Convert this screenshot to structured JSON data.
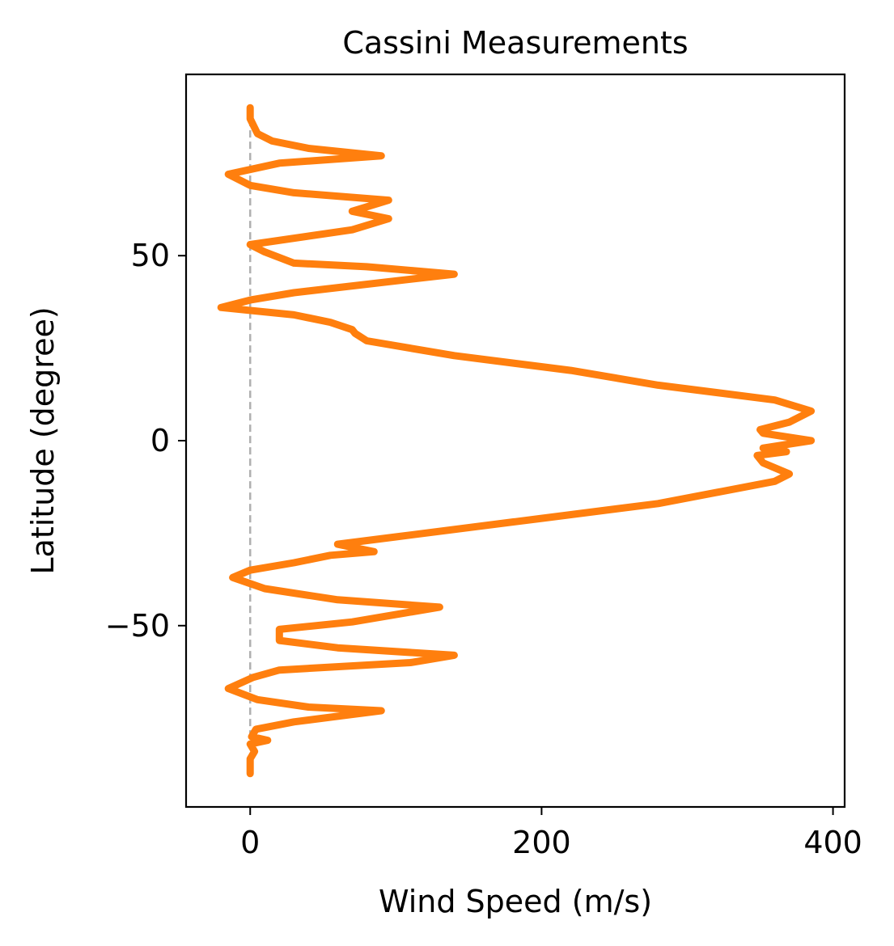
{
  "chart_data": {
    "type": "line",
    "title": "Cassini Measurements",
    "xlabel": "Wind Speed (m/s)",
    "ylabel": "Latitude (degree)",
    "xlim": [
      -44,
      408
    ],
    "ylim": [
      -99,
      99
    ],
    "xticks": [
      0,
      200,
      400
    ],
    "xtick_labels": [
      "0",
      "200",
      "400"
    ],
    "yticks": [
      -50,
      0,
      50
    ],
    "ytick_labels": [
      "−50",
      "0",
      "50"
    ],
    "grid": false,
    "legend": "none",
    "reference_line": {
      "x": 0,
      "style": "dashed",
      "color": "#b0b0b0"
    },
    "series": [
      {
        "color": "#ff7f0e",
        "points": [
          [
            0,
            -90
          ],
          [
            0,
            -86
          ],
          [
            3,
            -84
          ],
          [
            0,
            -82
          ],
          [
            12,
            -81
          ],
          [
            1,
            -80
          ],
          [
            4,
            -78
          ],
          [
            30,
            -76
          ],
          [
            90,
            -73
          ],
          [
            40,
            -72
          ],
          [
            5,
            -70
          ],
          [
            -15,
            -67
          ],
          [
            2,
            -64
          ],
          [
            20,
            -62
          ],
          [
            110,
            -60
          ],
          [
            140,
            -58
          ],
          [
            60,
            -56
          ],
          [
            20,
            -54
          ],
          [
            20,
            -51
          ],
          [
            70,
            -49
          ],
          [
            130,
            -45
          ],
          [
            60,
            -43
          ],
          [
            10,
            -40
          ],
          [
            -12,
            -37
          ],
          [
            0,
            -35
          ],
          [
            30,
            -33
          ],
          [
            55,
            -31
          ],
          [
            85,
            -30
          ],
          [
            60,
            -28
          ],
          [
            100,
            -26
          ],
          [
            200,
            -21
          ],
          [
            280,
            -17
          ],
          [
            320,
            -14
          ],
          [
            360,
            -11
          ],
          [
            370,
            -9
          ],
          [
            352,
            -6
          ],
          [
            348,
            -4
          ],
          [
            368,
            -3
          ],
          [
            352,
            -2
          ],
          [
            385,
            0
          ],
          [
            352,
            2
          ],
          [
            350,
            3
          ],
          [
            370,
            5
          ],
          [
            385,
            8
          ],
          [
            360,
            11
          ],
          [
            320,
            13
          ],
          [
            280,
            15
          ],
          [
            220,
            19
          ],
          [
            140,
            23
          ],
          [
            80,
            27
          ],
          [
            72,
            29
          ],
          [
            70,
            30
          ],
          [
            55,
            32
          ],
          [
            30,
            34
          ],
          [
            -20,
            36
          ],
          [
            0,
            38
          ],
          [
            30,
            40
          ],
          [
            140,
            45
          ],
          [
            80,
            47
          ],
          [
            30,
            48
          ],
          [
            10,
            51
          ],
          [
            0,
            53
          ],
          [
            70,
            57
          ],
          [
            95,
            60
          ],
          [
            70,
            62
          ],
          [
            95,
            65
          ],
          [
            30,
            67
          ],
          [
            0,
            69
          ],
          [
            -15,
            72
          ],
          [
            20,
            75
          ],
          [
            90,
            77
          ],
          [
            40,
            79
          ],
          [
            15,
            81
          ],
          [
            5,
            83
          ],
          [
            0,
            87
          ],
          [
            0,
            90
          ]
        ]
      }
    ]
  }
}
